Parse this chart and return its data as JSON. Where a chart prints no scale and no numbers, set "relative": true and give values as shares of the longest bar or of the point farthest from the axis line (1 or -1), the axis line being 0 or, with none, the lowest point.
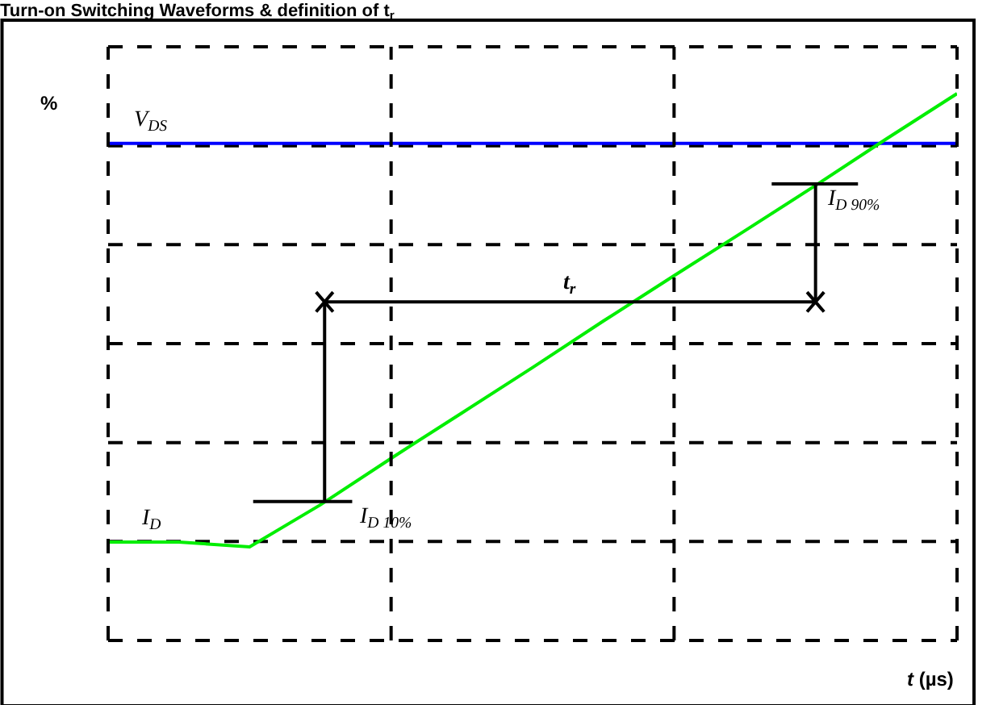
{
  "chart_data": {
    "type": "line",
    "relative": true,
    "title": "Turn-on Switching Waveforms & definition of t$_{r}$",
    "xlabel": "t (µs)",
    "ylabel": "%",
    "categories": [
      null,
      null,
      null,
      null,
      null,
      null,
      null,
      null,
      null,
      null,
      null,
      null,
      null
    ],
    "series": [
      {
        "name": "V$_{DS}$",
        "color": "#0000ff",
        "values": [
          0.909,
          0.909,
          0.909,
          0.909,
          0.909,
          0.909,
          0.909,
          0.909,
          0.909,
          0.909,
          0.909,
          0.909,
          0.909
        ]
      },
      {
        "name": "I$_{D}$",
        "color": "#00ee00",
        "values": [
          0.18,
          0.18,
          0.171,
          0.248,
          0.333,
          0.416,
          0.499,
          0.584,
          0.667,
          0.749,
          0.832,
          0.917,
          1.0
        ]
      }
    ],
    "annotations": [
      "I$_{D 10%}$",
      "I$_{D 90%}$",
      "t$_{r}$"
    ],
    "grid": true,
    "legend": false,
    "marker": "none",
    "line_style": "solid"
  }
}
